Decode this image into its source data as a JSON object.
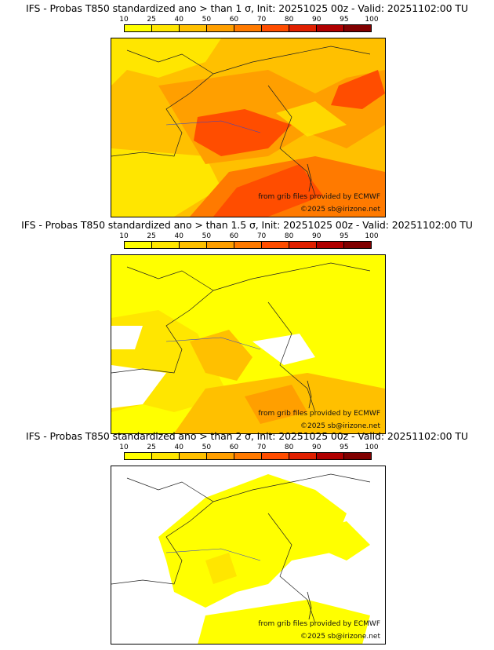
{
  "colorbar": {
    "ticks": [
      "10",
      "25",
      "40",
      "50",
      "60",
      "70",
      "80",
      "90",
      "95",
      "100"
    ],
    "colors": [
      "#ffff00",
      "#ffe600",
      "#ffc000",
      "#ff9f00",
      "#ff7a00",
      "#ff4d00",
      "#e02000",
      "#b00000",
      "#800000"
    ]
  },
  "panels": [
    {
      "title": "IFS - Probas T850  standardized ano > than 1 σ, Init: 20251025 00z - Valid: 20251102:00 TU",
      "credit_grib": "from grib files provided by ECMWF",
      "credit_copy": "©2025 sb@irizone.net",
      "base_fill": "#ffc000"
    },
    {
      "title": "IFS - Probas T850  standardized ano > than 1.5 σ, Init: 20251025 00z - Valid: 20251102:00 TU",
      "credit_grib": "from grib files provided by ECMWF",
      "credit_copy": "©2025 sb@irizone.net",
      "base_fill": "#ffe600"
    },
    {
      "title": "IFS - Probas T850  standardized ano > than 2 σ, Init: 20251025 00z - Valid: 20251102:00 TU",
      "credit_grib": "from grib files provided by ECMWF",
      "credit_copy": "©2025 sb@irizone.net",
      "base_fill": "#ffffff"
    }
  ]
}
